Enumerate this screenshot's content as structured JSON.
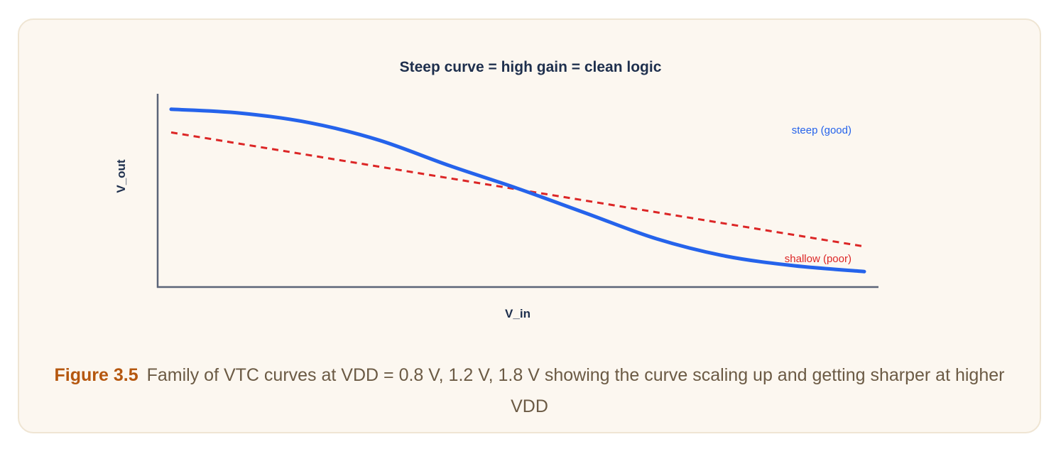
{
  "chart_data": {
    "type": "line",
    "title": "Steep curve = high gain = clean logic",
    "xlabel": "V_in",
    "ylabel": "V_out",
    "xlim": [
      0,
      1
    ],
    "ylim": [
      0,
      1
    ],
    "grid": false,
    "series": [
      {
        "name": "steep (good)",
        "color": "#2563eb",
        "style": "solid",
        "x": [
          0.0,
          0.1,
          0.2,
          0.3,
          0.4,
          0.5,
          0.6,
          0.7,
          0.8,
          0.9,
          1.0
        ],
        "y": [
          0.92,
          0.9,
          0.85,
          0.76,
          0.63,
          0.51,
          0.38,
          0.25,
          0.16,
          0.11,
          0.08
        ]
      },
      {
        "name": "shallow (poor)",
        "color": "#dc2626",
        "style": "dashed",
        "x": [
          0.0,
          1.0
        ],
        "y": [
          0.8,
          0.21
        ]
      }
    ]
  },
  "caption": {
    "label": "Figure 3.5",
    "text": "Family of VTC curves at VDD = 0.8 V, 1.2 V, 1.8 V showing the curve scaling up and getting sharper at higher VDD"
  }
}
